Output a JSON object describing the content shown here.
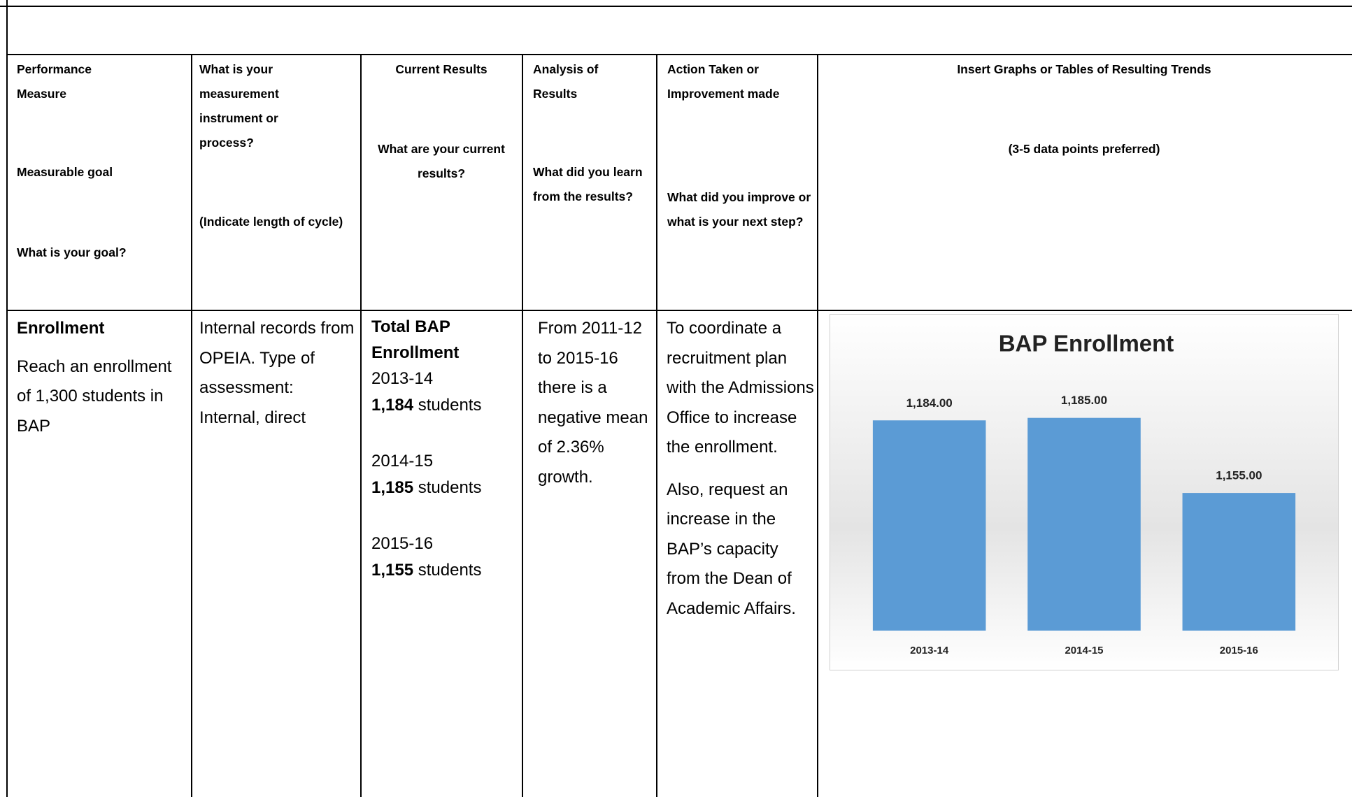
{
  "table": {
    "header": [
      [
        "Performance Measure",
        "Measurable goal",
        "What is your goal?"
      ],
      [
        "What is your measurement instrument or process?",
        "(Indicate length of cycle)"
      ],
      [
        "Current Results",
        "What are your current results?"
      ],
      [
        "Analysis of Results",
        "What did you learn from the results?"
      ],
      [
        "Action Taken or Improvement made",
        "What did you improve or what is your next step?"
      ],
      [
        "Insert Graphs or Tables of Resulting Trends",
        "(3-5 data points preferred)"
      ]
    ],
    "rows": [
      [
        {
          "title": "Enrollment",
          "text": "Reach an enrollment of 1,300 students in BAP"
        },
        "Internal records from OPEIA. Type of assessment: Internal, direct",
        {
          "heading": "Total BAP Enrollment",
          "entries": [
            {
              "year": "2013-14",
              "count": "1,184",
              "unit": "students"
            },
            {
              "year": "2014-15",
              "count": "1,185",
              "unit": "students"
            },
            {
              "year": "2015-16",
              "count": "1,155",
              "unit": "students"
            }
          ]
        },
        "From 2011-12 to 2015-16 there is a negative mean of 2.36% growth.",
        [
          "To coordinate a recruitment plan with the Admissions Office to increase the enrollment.",
          "Also, request an increase in the BAP’s capacity from the Dean of Academic Affairs."
        ]
      ]
    ]
  },
  "chart_data": {
    "type": "bar",
    "title": "BAP Enrollment",
    "categories": [
      "2013-14",
      "2014-15",
      "2015-16"
    ],
    "values": [
      1184,
      1185,
      1155
    ],
    "value_labels": [
      "1,184.00",
      "1,185.00",
      "1,155.00"
    ],
    "color": "#5b9bd5",
    "ylim": [
      1100,
      1200
    ],
    "grid": false
  }
}
